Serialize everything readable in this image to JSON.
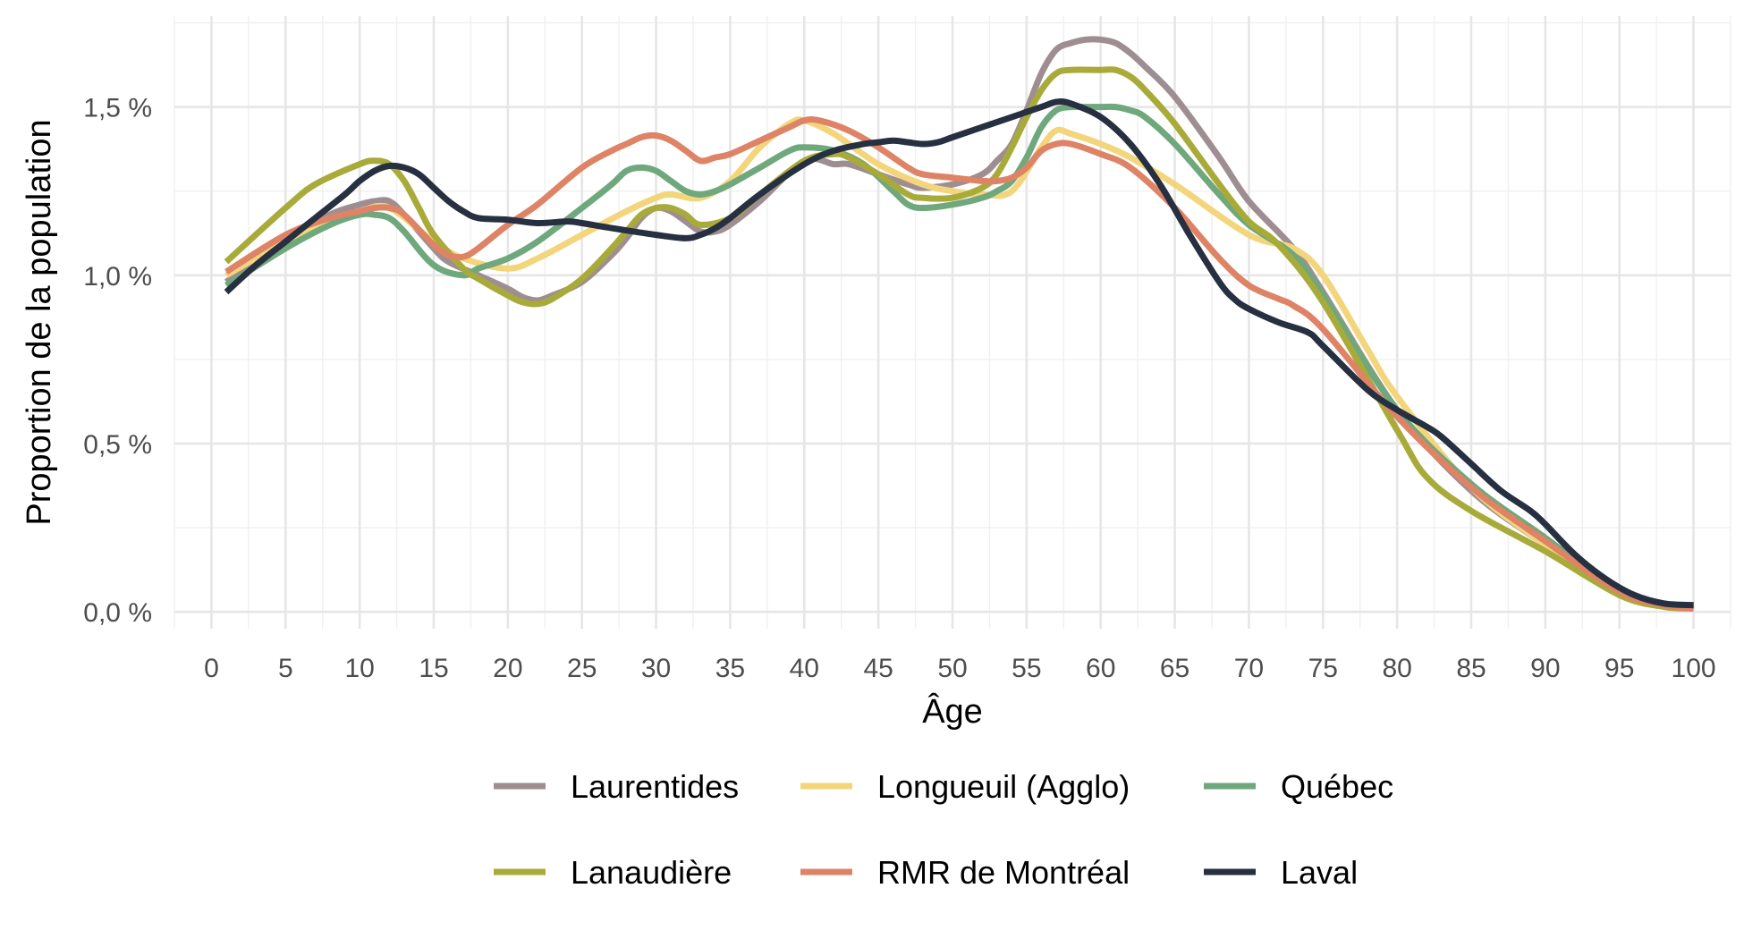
{
  "chart_data": {
    "type": "line",
    "title": "",
    "xlabel": "Âge",
    "ylabel": "Proportion de la population",
    "xlim": [
      -2.5,
      102.5
    ],
    "ylim": [
      -0.05,
      1.77
    ],
    "x_ticks": [
      0,
      5,
      10,
      15,
      20,
      25,
      30,
      35,
      40,
      45,
      50,
      55,
      60,
      65,
      70,
      75,
      80,
      85,
      90,
      95,
      100
    ],
    "x_tick_labels": [
      "0",
      "5",
      "10",
      "15",
      "20",
      "25",
      "30",
      "35",
      "40",
      "45",
      "50",
      "55",
      "60",
      "65",
      "70",
      "75",
      "80",
      "85",
      "90",
      "95",
      "100"
    ],
    "y_ticks": [
      0,
      0.5,
      1.0,
      1.5
    ],
    "y_tick_labels": [
      "0,0 %",
      "0,5 %",
      "1,0 %",
      "1,5 %"
    ],
    "grid": true,
    "legend_position": "bottom",
    "series": [
      {
        "name": "Laurentides",
        "color": "#9e8e91",
        "x": [
          1,
          5,
          8,
          10,
          11,
          12,
          13,
          15,
          16,
          18,
          20,
          21,
          22,
          23,
          25,
          27,
          28,
          29,
          30,
          31,
          32,
          33,
          34,
          35,
          37,
          40,
          42,
          43,
          45,
          47,
          48,
          50,
          52,
          53,
          54,
          55,
          56,
          57,
          58,
          59,
          60,
          61,
          62,
          63,
          65,
          68,
          70,
          73,
          75,
          80,
          85,
          90,
          95,
          98,
          100
        ],
        "values": [
          0.98,
          1.1,
          1.18,
          1.21,
          1.22,
          1.22,
          1.18,
          1.08,
          1.04,
          1.0,
          0.96,
          0.935,
          0.925,
          0.94,
          0.98,
          1.06,
          1.11,
          1.17,
          1.2,
          1.19,
          1.16,
          1.13,
          1.13,
          1.15,
          1.22,
          1.34,
          1.33,
          1.33,
          1.3,
          1.27,
          1.26,
          1.27,
          1.3,
          1.34,
          1.39,
          1.49,
          1.6,
          1.67,
          1.69,
          1.7,
          1.7,
          1.69,
          1.66,
          1.62,
          1.53,
          1.35,
          1.22,
          1.08,
          0.95,
          0.6,
          0.36,
          0.2,
          0.06,
          0.02,
          0.01
        ]
      },
      {
        "name": "Longueuil (Agglo)",
        "color": "#f3d57c",
        "x": [
          1,
          5,
          8,
          10,
          12,
          15,
          17,
          20,
          22,
          25,
          28,
          30,
          31,
          33,
          35,
          37,
          39,
          40,
          42,
          45,
          48,
          50,
          52,
          54,
          56,
          57,
          58,
          60,
          62,
          65,
          70,
          73,
          75,
          78,
          80,
          85,
          90,
          95,
          98,
          100
        ],
        "values": [
          1.0,
          1.1,
          1.16,
          1.19,
          1.2,
          1.1,
          1.05,
          1.02,
          1.05,
          1.12,
          1.19,
          1.23,
          1.24,
          1.23,
          1.28,
          1.38,
          1.45,
          1.46,
          1.42,
          1.33,
          1.27,
          1.25,
          1.24,
          1.25,
          1.38,
          1.43,
          1.42,
          1.39,
          1.35,
          1.27,
          1.12,
          1.08,
          1.0,
          0.78,
          0.64,
          0.37,
          0.2,
          0.06,
          0.02,
          0.01
        ]
      },
      {
        "name": "Québec",
        "color": "#6fa87c",
        "x": [
          1,
          5,
          8,
          10,
          11,
          12,
          13,
          15,
          17,
          18,
          20,
          22,
          25,
          27,
          28,
          29,
          30,
          31,
          32,
          33,
          34,
          35,
          37,
          39,
          40,
          42,
          44,
          46,
          47,
          48,
          50,
          52,
          53,
          54,
          55,
          56,
          57,
          58,
          59,
          60,
          61,
          62,
          63,
          65,
          68,
          70,
          73,
          75,
          80,
          85,
          90,
          95,
          98,
          100
        ],
        "values": [
          0.97,
          1.08,
          1.15,
          1.18,
          1.18,
          1.17,
          1.13,
          1.03,
          1.0,
          1.02,
          1.05,
          1.1,
          1.2,
          1.27,
          1.31,
          1.32,
          1.31,
          1.28,
          1.25,
          1.24,
          1.25,
          1.27,
          1.32,
          1.37,
          1.38,
          1.37,
          1.33,
          1.25,
          1.21,
          1.2,
          1.21,
          1.23,
          1.25,
          1.28,
          1.35,
          1.44,
          1.49,
          1.5,
          1.5,
          1.5,
          1.5,
          1.49,
          1.47,
          1.39,
          1.24,
          1.15,
          1.06,
          0.94,
          0.6,
          0.38,
          0.22,
          0.06,
          0.02,
          0.01
        ]
      },
      {
        "name": "Lanaudière",
        "color": "#a8ab3a",
        "x": [
          1,
          5,
          7,
          10,
          11,
          12,
          13,
          14,
          15,
          17,
          18,
          20,
          21,
          22,
          23,
          25,
          27,
          28,
          29,
          30,
          31,
          32,
          33,
          35,
          37,
          40,
          42,
          43,
          45,
          47,
          48,
          50,
          52,
          53,
          54,
          55,
          56,
          57,
          58,
          60,
          61,
          62,
          63,
          65,
          68,
          70,
          72,
          75,
          80,
          82,
          85,
          90,
          95,
          98,
          100
        ],
        "values": [
          1.04,
          1.2,
          1.27,
          1.33,
          1.34,
          1.33,
          1.28,
          1.2,
          1.12,
          1.02,
          0.99,
          0.94,
          0.92,
          0.915,
          0.93,
          0.99,
          1.08,
          1.13,
          1.18,
          1.2,
          1.2,
          1.18,
          1.15,
          1.17,
          1.24,
          1.34,
          1.36,
          1.35,
          1.3,
          1.24,
          1.23,
          1.23,
          1.26,
          1.3,
          1.38,
          1.47,
          1.55,
          1.6,
          1.61,
          1.61,
          1.61,
          1.59,
          1.55,
          1.45,
          1.27,
          1.16,
          1.09,
          0.92,
          0.54,
          0.4,
          0.3,
          0.18,
          0.05,
          0.015,
          0.01
        ]
      },
      {
        "name": "RMR de Montréal",
        "color": "#de8366",
        "x": [
          1,
          5,
          8,
          10,
          11,
          12,
          13,
          15,
          16,
          17,
          18,
          20,
          22,
          25,
          27,
          28,
          29,
          30,
          31,
          32,
          33,
          34,
          35,
          37,
          39,
          40,
          41,
          43,
          45,
          47,
          48,
          50,
          52,
          53,
          54,
          55,
          56,
          57,
          58,
          60,
          62,
          65,
          68,
          70,
          72,
          73,
          75,
          80,
          85,
          90,
          95,
          98,
          100
        ],
        "values": [
          1.01,
          1.12,
          1.17,
          1.19,
          1.2,
          1.2,
          1.18,
          1.09,
          1.06,
          1.055,
          1.08,
          1.15,
          1.21,
          1.32,
          1.37,
          1.39,
          1.41,
          1.415,
          1.4,
          1.37,
          1.34,
          1.35,
          1.36,
          1.4,
          1.44,
          1.46,
          1.46,
          1.43,
          1.38,
          1.32,
          1.3,
          1.29,
          1.28,
          1.28,
          1.29,
          1.32,
          1.37,
          1.39,
          1.39,
          1.36,
          1.32,
          1.2,
          1.05,
          0.97,
          0.93,
          0.91,
          0.84,
          0.58,
          0.37,
          0.21,
          0.06,
          0.02,
          0.01
        ]
      },
      {
        "name": "Laval",
        "color": "#263041",
        "x": [
          1,
          3,
          5,
          7,
          9,
          10,
          11,
          12,
          13,
          14,
          15,
          16,
          17,
          18,
          20,
          22,
          24,
          25,
          27,
          30,
          32,
          33,
          34,
          35,
          37,
          40,
          42,
          44,
          45,
          46,
          47,
          48,
          49,
          50,
          52,
          54,
          56,
          57,
          58,
          60,
          62,
          64,
          66,
          68,
          69,
          70,
          72,
          74,
          75,
          78,
          80,
          82,
          83,
          85,
          87,
          89,
          90,
          92,
          94,
          96,
          98,
          100
        ],
        "values": [
          0.95,
          1.03,
          1.1,
          1.17,
          1.24,
          1.28,
          1.31,
          1.325,
          1.32,
          1.3,
          1.26,
          1.22,
          1.19,
          1.17,
          1.165,
          1.155,
          1.16,
          1.155,
          1.14,
          1.12,
          1.11,
          1.12,
          1.14,
          1.17,
          1.24,
          1.33,
          1.37,
          1.39,
          1.395,
          1.4,
          1.395,
          1.39,
          1.395,
          1.41,
          1.44,
          1.47,
          1.5,
          1.515,
          1.51,
          1.47,
          1.39,
          1.27,
          1.12,
          0.98,
          0.93,
          0.9,
          0.86,
          0.83,
          0.79,
          0.66,
          0.6,
          0.55,
          0.52,
          0.44,
          0.36,
          0.3,
          0.26,
          0.17,
          0.1,
          0.05,
          0.025,
          0.02
        ]
      }
    ],
    "legend_rows": [
      [
        "Laurentides",
        "Longueuil (Agglo)",
        "Québec"
      ],
      [
        "Lanaudière",
        "RMR de Montréal",
        "Laval"
      ]
    ]
  }
}
